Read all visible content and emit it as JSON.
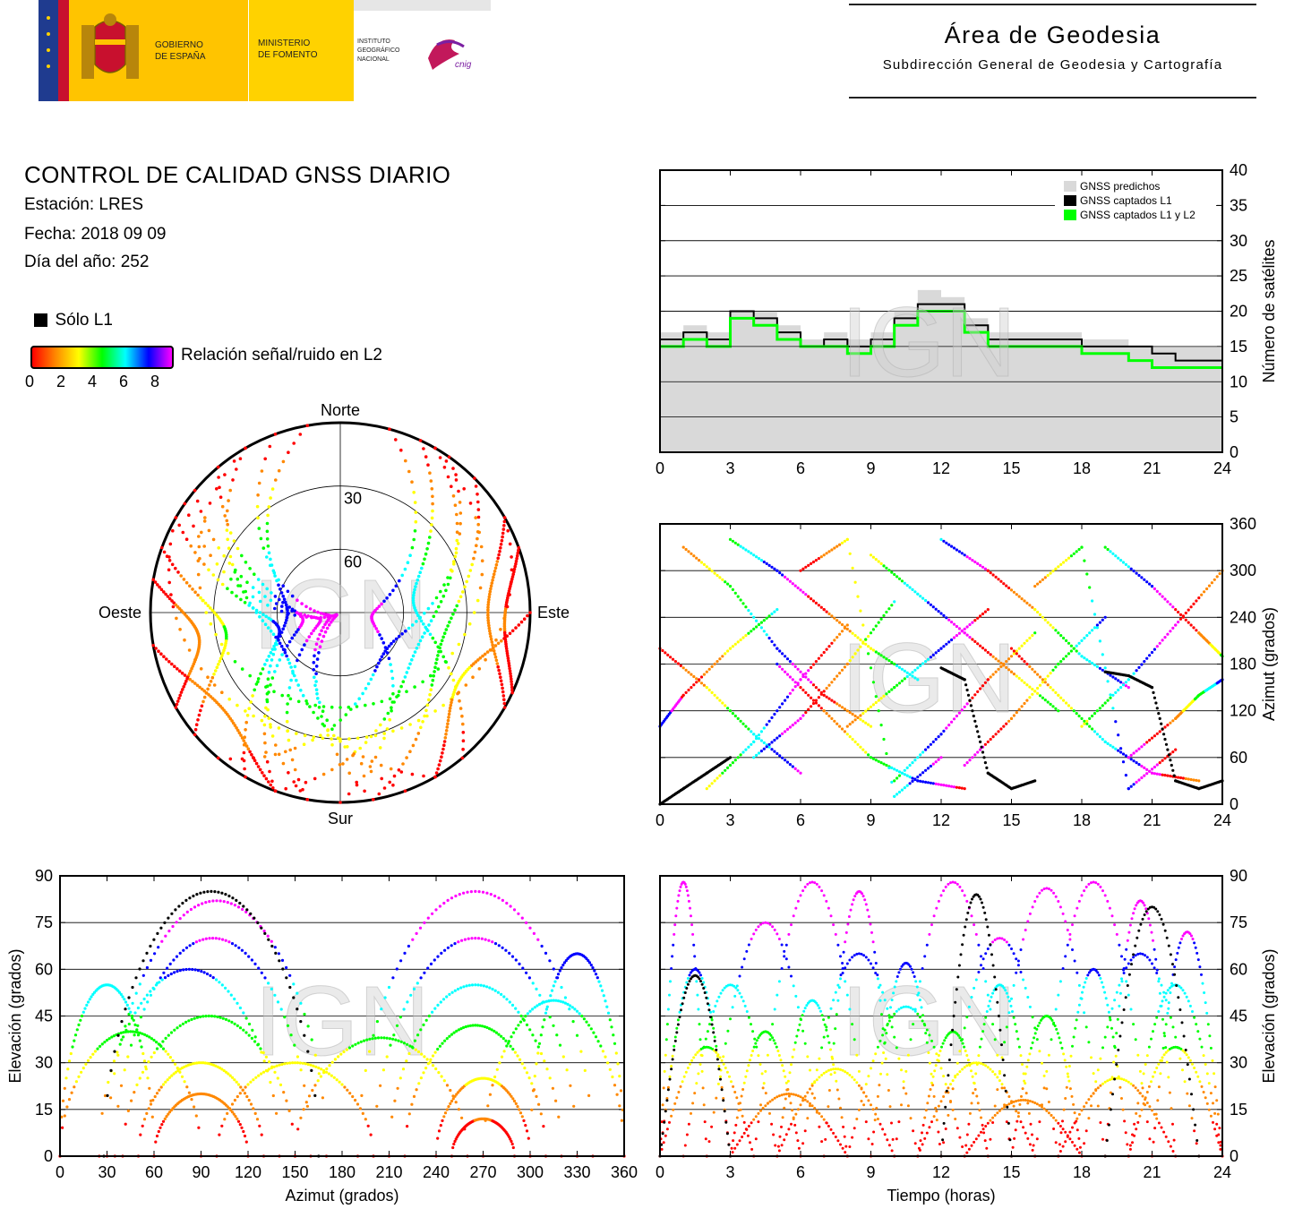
{
  "header": {
    "gov_line1": "GOBIERNO",
    "gov_line2": "DE ESPAÑA",
    "ministry_line1": "MINISTERIO",
    "ministry_line2": "DE FOMENTO",
    "ign_line1": "INSTITUTO",
    "ign_line2": "GEOGRÁFICO",
    "ign_line3": "NACIONAL",
    "cnig": "cnig",
    "area_title": "Área de Geodesia",
    "area_subtitle": "Subdirección General de Geodesia y Cartografía",
    "colors": {
      "flag_red": "#c8102e",
      "flag_yellow": "#ffc400",
      "ministry_yellow": "#ffd200",
      "eu_blue": "#1f3b8f"
    }
  },
  "report": {
    "title": "CONTROL DE CALIDAD GNSS DIARIO",
    "station": "Estación: LRES",
    "date": "Fecha: 2018 09 09",
    "doy": "Día del año: 252"
  },
  "legend": {
    "only_l1": "Sólo L1",
    "snr_label": "Relación señal/ruido en L2",
    "snr_ticks": [
      "0",
      "2",
      "4",
      "6",
      "8"
    ],
    "snr_colors": [
      "#ff0000",
      "#ff8800",
      "#ffff00",
      "#00ff00",
      "#00ffff",
      "#0000ff",
      "#ff00ff"
    ]
  },
  "watermark": "IGN",
  "chart_data": [
    {
      "id": "skyplot",
      "type": "scatter",
      "labels": {
        "north": "Norte",
        "south": "Sur",
        "east": "Este",
        "west": "Oeste"
      },
      "ring_labels": [
        "30",
        "60"
      ],
      "tracks": [
        {
          "az_start": 330,
          "az_end": 150,
          "max_el": 58
        },
        {
          "az_start": 310,
          "az_end": 190,
          "max_el": 80
        },
        {
          "az_start": 300,
          "az_end": 210,
          "max_el": 60
        },
        {
          "az_start": 320,
          "az_end": 200,
          "max_el": 72
        },
        {
          "az_start": 340,
          "az_end": 160,
          "max_el": 85
        },
        {
          "az_start": 30,
          "az_end": 200,
          "max_el": 50
        },
        {
          "az_start": 45,
          "az_end": 170,
          "max_el": 40
        },
        {
          "az_start": 25,
          "az_end": 140,
          "max_el": 55
        },
        {
          "az_start": 290,
          "az_end": 230,
          "max_el": 35
        },
        {
          "az_start": 280,
          "az_end": 240,
          "max_el": 22
        },
        {
          "az_start": 60,
          "az_end": 120,
          "max_el": 20
        },
        {
          "az_start": 70,
          "az_end": 115,
          "max_el": 12
        },
        {
          "az_start": 350,
          "az_end": 190,
          "max_el": 65
        },
        {
          "az_start": 15,
          "az_end": 180,
          "max_el": 75
        },
        {
          "az_start": 300,
          "az_end": 60,
          "max_el": 30
        },
        {
          "az_start": 330,
          "az_end": 30,
          "max_el": 45
        },
        {
          "az_start": 260,
          "az_end": 200,
          "max_el": 18
        },
        {
          "az_start": 90,
          "az_end": 150,
          "max_el": 25
        },
        {
          "az_start": 305,
          "az_end": 170,
          "max_el": 88
        },
        {
          "az_start": 35,
          "az_end": 220,
          "max_el": 62
        }
      ]
    },
    {
      "id": "satellite-count",
      "type": "area",
      "ylabel": "Número de satélites",
      "xlim": [
        0,
        24
      ],
      "ylim": [
        0,
        40
      ],
      "xticks": [
        0,
        3,
        6,
        9,
        12,
        15,
        18,
        21,
        24
      ],
      "yticks": [
        0,
        5,
        10,
        15,
        20,
        25,
        30,
        35,
        40
      ],
      "legend_position": "top-right",
      "series": [
        {
          "name": "GNSS predichos",
          "color": "#d9d9d9",
          "x": [
            0,
            1,
            2,
            3,
            4,
            5,
            6,
            7,
            8,
            9,
            10,
            11,
            12,
            13,
            14,
            15,
            16,
            17,
            18,
            19,
            20,
            21,
            22,
            23,
            24
          ],
          "values": [
            17,
            18,
            17,
            20,
            20,
            18,
            16,
            17,
            16,
            17,
            20,
            23,
            22,
            19,
            17,
            17,
            17,
            17,
            16,
            16,
            15,
            15,
            15,
            15,
            16
          ]
        },
        {
          "name": "GNSS captados L1",
          "color": "#000000",
          "x": [
            0,
            1,
            2,
            3,
            4,
            5,
            6,
            7,
            8,
            9,
            10,
            11,
            12,
            13,
            14,
            15,
            16,
            17,
            18,
            19,
            20,
            21,
            22,
            23,
            24
          ],
          "values": [
            16,
            17,
            16,
            20,
            19,
            17,
            15,
            16,
            15,
            16,
            19,
            21,
            21,
            18,
            16,
            16,
            16,
            16,
            15,
            15,
            15,
            14,
            13,
            13,
            15
          ]
        },
        {
          "name": "GNSS captados L1 y L2",
          "color": "#00ff00",
          "x": [
            0,
            1,
            2,
            3,
            4,
            5,
            6,
            7,
            8,
            9,
            10,
            11,
            12,
            13,
            14,
            15,
            16,
            17,
            18,
            19,
            20,
            21,
            22,
            23,
            24
          ],
          "values": [
            15,
            16,
            15,
            19,
            18,
            16,
            15,
            15,
            14,
            15,
            18,
            20,
            20,
            17,
            15,
            15,
            15,
            15,
            14,
            14,
            13,
            12,
            12,
            12,
            14
          ]
        }
      ]
    },
    {
      "id": "azimuth-time",
      "type": "scatter",
      "ylabel": "Azimut (grados)",
      "xlim": [
        0,
        24
      ],
      "ylim": [
        0,
        360
      ],
      "xticks": [
        0,
        3,
        6,
        9,
        12,
        15,
        18,
        21,
        24
      ],
      "yticks": [
        0,
        60,
        120,
        180,
        240,
        300,
        360
      ],
      "tracks": [
        {
          "x": [
            0,
            2,
            4,
            6
          ],
          "y": [
            200,
            150,
            90,
            40
          ]
        },
        {
          "x": [
            1,
            3,
            5,
            7,
            9
          ],
          "y": [
            330,
            280,
            200,
            140,
            100
          ]
        },
        {
          "x": [
            2,
            4,
            6,
            8
          ],
          "y": [
            20,
            80,
            160,
            230
          ]
        },
        {
          "x": [
            3,
            5,
            7,
            9,
            11
          ],
          "y": [
            340,
            300,
            250,
            200,
            160
          ]
        },
        {
          "x": [
            4,
            6,
            8,
            10
          ],
          "y": [
            60,
            110,
            180,
            260
          ]
        },
        {
          "x": [
            5,
            7,
            9,
            11,
            13
          ],
          "y": [
            180,
            120,
            60,
            30,
            20
          ]
        },
        {
          "x": [
            6,
            8,
            10,
            12
          ],
          "y": [
            300,
            340,
            10,
            60
          ]
        },
        {
          "x": [
            8,
            10,
            12,
            14
          ],
          "y": [
            100,
            150,
            200,
            250
          ]
        },
        {
          "x": [
            9,
            11,
            13,
            15,
            17
          ],
          "y": [
            320,
            270,
            220,
            170,
            120
          ]
        },
        {
          "x": [
            10,
            12,
            14,
            16
          ],
          "y": [
            30,
            90,
            160,
            220
          ]
        },
        {
          "x": [
            12,
            14,
            16,
            18,
            20
          ],
          "y": [
            340,
            300,
            250,
            190,
            150
          ]
        },
        {
          "x": [
            13,
            15,
            17,
            19
          ],
          "y": [
            50,
            110,
            180,
            240
          ]
        },
        {
          "x": [
            15,
            17,
            19,
            21,
            23
          ],
          "y": [
            200,
            140,
            80,
            40,
            30
          ]
        },
        {
          "x": [
            16,
            18,
            20,
            22
          ],
          "y": [
            280,
            330,
            20,
            70
          ]
        },
        {
          "x": [
            18,
            20,
            22,
            24
          ],
          "y": [
            100,
            160,
            230,
            300
          ]
        },
        {
          "x": [
            19,
            21,
            23,
            24
          ],
          "y": [
            330,
            280,
            220,
            190
          ]
        },
        {
          "x": [
            0,
            1,
            3,
            5
          ],
          "y": [
            100,
            140,
            200,
            250
          ]
        },
        {
          "x": [
            20,
            22,
            23,
            24
          ],
          "y": [
            60,
            110,
            140,
            160
          ]
        }
      ],
      "l1_only_tracks": [
        {
          "x": [
            0,
            1,
            2,
            3
          ],
          "y": [
            0,
            20,
            40,
            60
          ]
        },
        {
          "x": [
            12,
            13,
            14,
            15,
            16
          ],
          "y": [
            175,
            160,
            40,
            20,
            30
          ]
        },
        {
          "x": [
            19,
            20,
            21,
            22,
            23,
            24
          ],
          "y": [
            170,
            165,
            150,
            30,
            20,
            30
          ]
        }
      ]
    },
    {
      "id": "elevation-azimuth",
      "type": "scatter",
      "xlabel": "Azimut (grados)",
      "ylabel": "Elevación (grados)",
      "xlim": [
        0,
        360
      ],
      "ylim": [
        0,
        90
      ],
      "xticks": [
        0,
        30,
        60,
        90,
        120,
        150,
        180,
        210,
        240,
        270,
        300,
        330,
        360
      ],
      "yticks": [
        0,
        15,
        30,
        45,
        60,
        75,
        90
      ],
      "arcs": [
        {
          "az_start": 30,
          "az_end": 170,
          "max_el": 82
        },
        {
          "az_start": 35,
          "az_end": 160,
          "max_el": 70
        },
        {
          "az_start": 25,
          "az_end": 140,
          "max_el": 60
        },
        {
          "az_start": 40,
          "az_end": 150,
          "max_el": 45
        },
        {
          "az_start": 50,
          "az_end": 130,
          "max_el": 30
        },
        {
          "az_start": 60,
          "az_end": 120,
          "max_el": 20
        },
        {
          "az_start": 190,
          "az_end": 340,
          "max_el": 85
        },
        {
          "az_start": 200,
          "az_end": 330,
          "max_el": 70
        },
        {
          "az_start": 210,
          "az_end": 320,
          "max_el": 55
        },
        {
          "az_start": 220,
          "az_end": 310,
          "max_el": 42
        },
        {
          "az_start": 240,
          "az_end": 300,
          "max_el": 25
        },
        {
          "az_start": 250,
          "az_end": 290,
          "max_el": 12
        },
        {
          "az_start": 0,
          "az_end": 90,
          "max_el": 40
        },
        {
          "az_start": 270,
          "az_end": 360,
          "max_el": 50
        },
        {
          "az_start": 100,
          "az_end": 200,
          "max_el": 30
        },
        {
          "az_start": 150,
          "az_end": 260,
          "max_el": 38
        },
        {
          "az_start": 300,
          "az_end": 360,
          "max_el": 65
        },
        {
          "az_start": 0,
          "az_end": 60,
          "max_el": 55
        }
      ],
      "l1_only_arcs": [
        {
          "az_start": 28,
          "az_end": 165,
          "max_el": 85
        }
      ]
    },
    {
      "id": "elevation-time",
      "type": "scatter",
      "xlabel": "Tiempo (horas)",
      "ylabel": "Elevación (grados)",
      "xlim": [
        0,
        24
      ],
      "ylim": [
        0,
        90
      ],
      "xticks": [
        0,
        3,
        6,
        9,
        12,
        15,
        18,
        21,
        24
      ],
      "yticks": [
        0,
        15,
        30,
        45,
        60,
        75,
        90
      ],
      "arcs": [
        {
          "t_start": 0,
          "t_end": 3,
          "max_el": 60
        },
        {
          "t_start": 0,
          "t_end": 2,
          "max_el": 88
        },
        {
          "t_start": 1,
          "t_end": 5,
          "max_el": 55
        },
        {
          "t_start": 2,
          "t_end": 7,
          "max_el": 75
        },
        {
          "t_start": 3,
          "t_end": 6,
          "max_el": 40
        },
        {
          "t_start": 4,
          "t_end": 9,
          "max_el": 88
        },
        {
          "t_start": 5,
          "t_end": 8,
          "max_el": 50
        },
        {
          "t_start": 6,
          "t_end": 11,
          "max_el": 65
        },
        {
          "t_start": 7,
          "t_end": 10,
          "max_el": 85
        },
        {
          "t_start": 8,
          "t_end": 13,
          "max_el": 48
        },
        {
          "t_start": 9,
          "t_end": 12,
          "max_el": 62
        },
        {
          "t_start": 10,
          "t_end": 15,
          "max_el": 88
        },
        {
          "t_start": 11,
          "t_end": 14,
          "max_el": 40
        },
        {
          "t_start": 12,
          "t_end": 17,
          "max_el": 70
        },
        {
          "t_start": 13,
          "t_end": 16,
          "max_el": 55
        },
        {
          "t_start": 14,
          "t_end": 19,
          "max_el": 86
        },
        {
          "t_start": 15,
          "t_end": 18,
          "max_el": 45
        },
        {
          "t_start": 16,
          "t_end": 21,
          "max_el": 88
        },
        {
          "t_start": 17,
          "t_end": 20,
          "max_el": 60
        },
        {
          "t_start": 18,
          "t_end": 23,
          "max_el": 65
        },
        {
          "t_start": 19,
          "t_end": 22,
          "max_el": 82
        },
        {
          "t_start": 20,
          "t_end": 24,
          "max_el": 55
        },
        {
          "t_start": 21,
          "t_end": 24,
          "max_el": 72
        },
        {
          "t_start": 0,
          "t_end": 4,
          "max_el": 35
        },
        {
          "t_start": 5,
          "t_end": 10,
          "max_el": 28
        },
        {
          "t_start": 11,
          "t_end": 16,
          "max_el": 30
        },
        {
          "t_start": 17,
          "t_end": 22,
          "max_el": 25
        },
        {
          "t_start": 3,
          "t_end": 8,
          "max_el": 20
        },
        {
          "t_start": 13,
          "t_end": 18,
          "max_el": 18
        },
        {
          "t_start": 20,
          "t_end": 24,
          "max_el": 35
        }
      ],
      "l1_only_arcs": [
        {
          "t_start": 0,
          "t_end": 3,
          "max_el": 58
        },
        {
          "t_start": 12,
          "t_end": 15,
          "max_el": 84
        },
        {
          "t_start": 19,
          "t_end": 23,
          "max_el": 80
        }
      ]
    }
  ]
}
